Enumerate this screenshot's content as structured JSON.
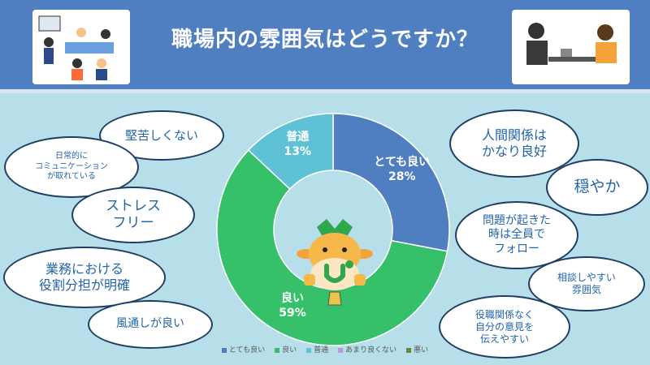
{
  "header": {
    "title": "職場内の雰囲気はどうですか？"
  },
  "chart_data": {
    "type": "pie",
    "categories": [
      "とても良い",
      "良い",
      "普通",
      "あまり良くない",
      "悪い"
    ],
    "values": [
      28,
      59,
      13,
      0,
      0
    ],
    "data_labels": [
      "とても良い\n28%",
      "良い\n59%",
      "普通\n13%",
      "",
      ""
    ],
    "colors": [
      "#4f7fc0",
      "#36c06a",
      "#5fc1d6",
      "#b89ad6",
      "#6a8a2a"
    ],
    "legend_position": "bottom"
  },
  "bubbles": [
    {
      "text": "堅苦しくない"
    },
    {
      "text": "日常的に\nコミュニケーション\nが取れている"
    },
    {
      "text": "ストレス\nフリー"
    },
    {
      "text": "業務における\n役割分担が明確"
    },
    {
      "text": "風通しが良い"
    },
    {
      "text": "人間関係は\nかなり良好"
    },
    {
      "text": "穏やか"
    },
    {
      "text": "問題が起きた\n時は全員で\nフォロー"
    },
    {
      "text": "相談しやすい\n雰囲気"
    },
    {
      "text": "役職関係なく\n自分の意見を\n伝えやすい"
    }
  ]
}
